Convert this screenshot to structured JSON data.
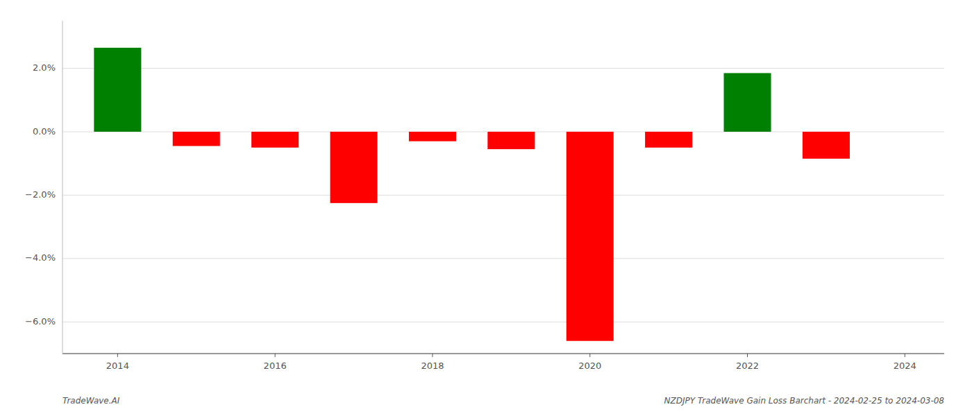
{
  "chart_data": {
    "type": "bar",
    "x": [
      2014,
      2015,
      2016,
      2017,
      2018,
      2019,
      2020,
      2021,
      2022,
      2023
    ],
    "values": [
      2.65,
      -0.45,
      -0.5,
      -2.25,
      -0.3,
      -0.55,
      -6.6,
      -0.5,
      1.85,
      -0.85
    ],
    "colors": [
      "#008000",
      "#ff0000",
      "#ff0000",
      "#ff0000",
      "#ff0000",
      "#ff0000",
      "#ff0000",
      "#ff0000",
      "#008000",
      "#ff0000"
    ],
    "xlim": [
      2013.3,
      2024.5
    ],
    "xticks": [
      2014,
      2016,
      2018,
      2020,
      2022,
      2024
    ],
    "ylim": [
      -7.0,
      3.5
    ],
    "yticks": [
      {
        "value": 2.0,
        "label": "2.0%"
      },
      {
        "value": 0.0,
        "label": "0.0%"
      },
      {
        "value": -2.0,
        "label": "−2.0%"
      },
      {
        "value": -4.0,
        "label": "−4.0%"
      },
      {
        "value": -6.0,
        "label": "−6.0%"
      }
    ],
    "grid": true,
    "annotations": [
      "TradeWave.AI",
      "NZDJPY TradeWave Gain Loss Barchart - 2024-02-25 to 2024-03-08"
    ]
  }
}
